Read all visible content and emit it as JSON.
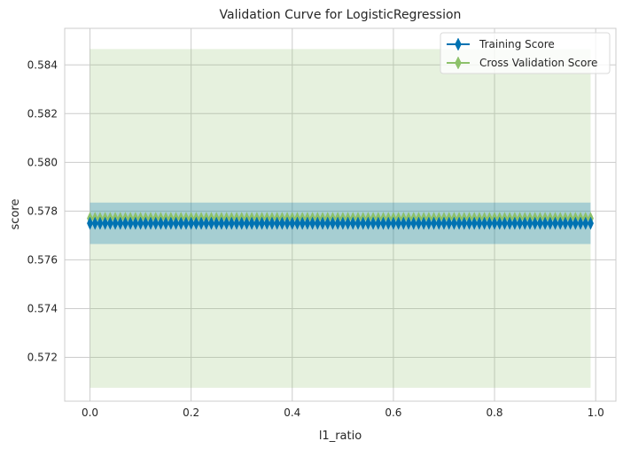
{
  "chart_data": {
    "type": "line",
    "title": "Validation Curve for LogisticRegression",
    "xlabel": "l1_ratio",
    "ylabel": "score",
    "xlim": [
      -0.05,
      1.04
    ],
    "ylim": [
      0.5702,
      0.5855
    ],
    "xticks": [
      0.0,
      0.2,
      0.4,
      0.6,
      0.8,
      1.0
    ],
    "xtick_labels": [
      "0.0",
      "0.2",
      "0.4",
      "0.6",
      "0.8",
      "1.0"
    ],
    "yticks": [
      0.572,
      0.574,
      0.576,
      0.578,
      0.58,
      0.582,
      0.584
    ],
    "ytick_labels": [
      "0.572",
      "0.574",
      "0.576",
      "0.578",
      "0.580",
      "0.582",
      "0.584"
    ],
    "grid": true,
    "legend_position": "top-right",
    "x_start": 0.0,
    "x_stop": 0.99,
    "x_step": 0.01,
    "series": [
      {
        "name": "Training Score",
        "color": "#0072b2",
        "marker": "thin_diamond",
        "mean": 0.5775,
        "band_low": 0.57665,
        "band_high": 0.57835
      },
      {
        "name": "Cross Validation Score",
        "color": "#8dc16a",
        "marker": "thin_diamond",
        "mean": 0.5777,
        "band_low": 0.57075,
        "band_high": 0.58465
      }
    ]
  }
}
